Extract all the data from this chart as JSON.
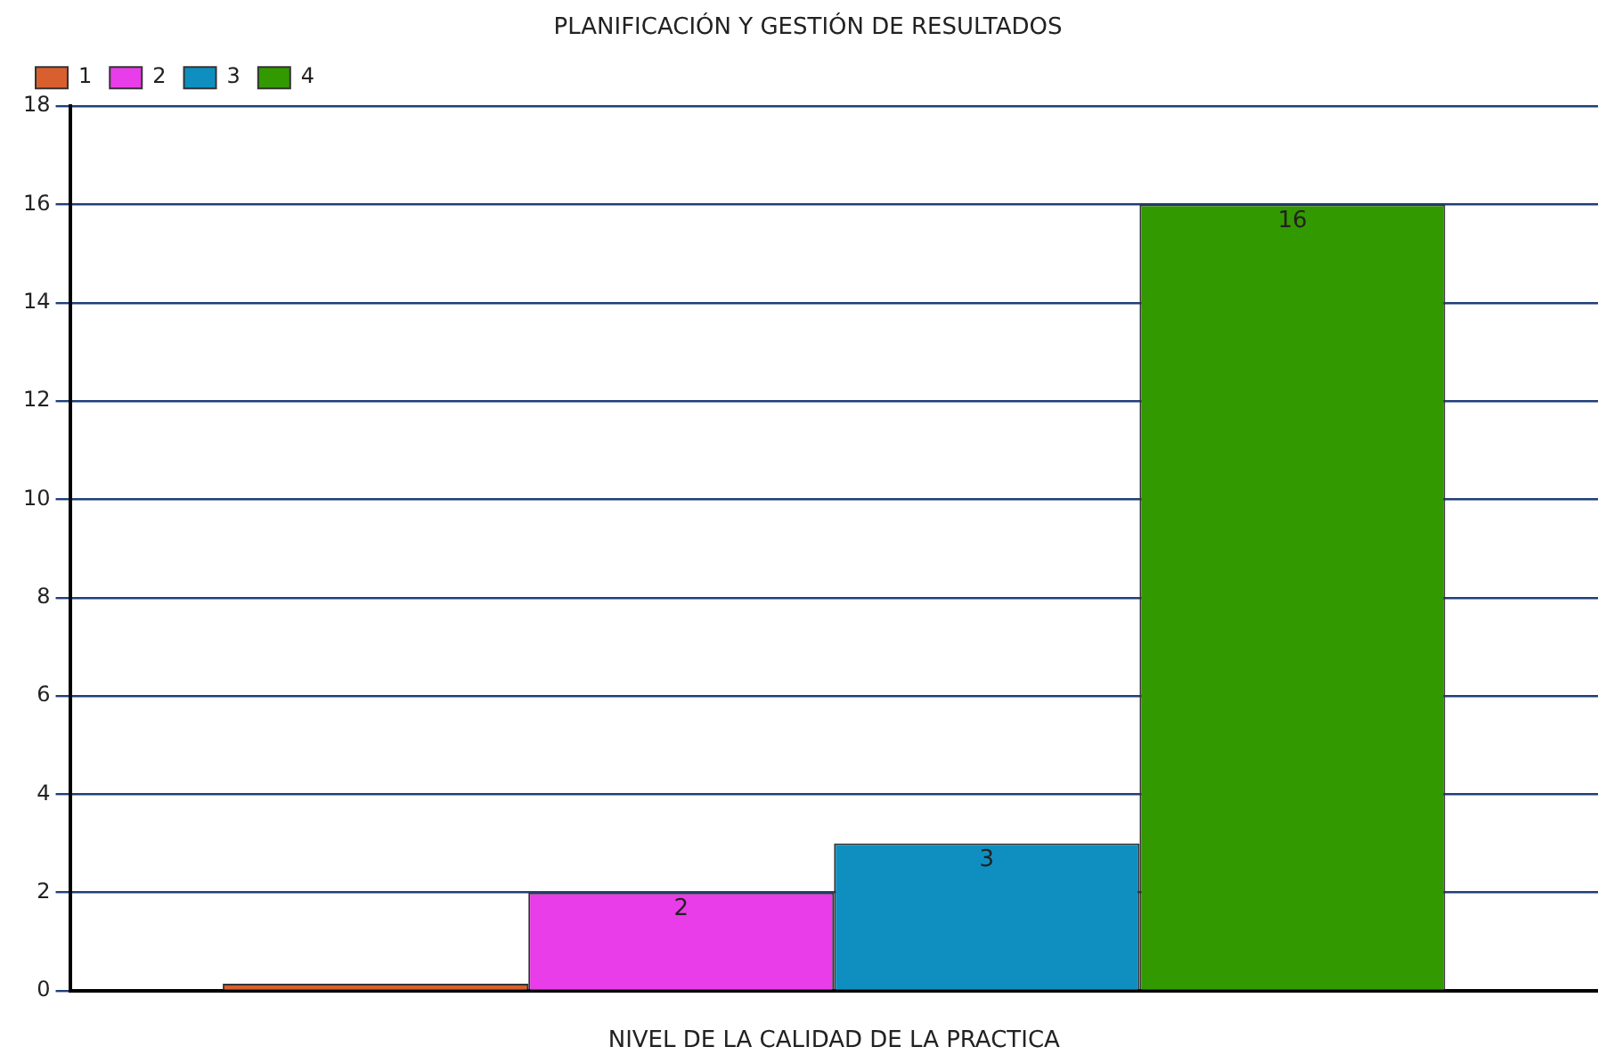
{
  "chart_data": {
    "type": "bar",
    "title": "PLANIFICACIÓN Y GESTIÓN DE RESULTADOS",
    "xlabel": "NIVEL DE LA CALIDAD DE LA PRACTICA",
    "categories": [
      null
    ],
    "series": [
      {
        "name": "1",
        "color": "#d9602e",
        "values": [
          0
        ],
        "value_labels": [
          null
        ]
      },
      {
        "name": "2",
        "color": "#e83de8",
        "values": [
          2
        ],
        "value_labels": [
          "2"
        ]
      },
      {
        "name": "3",
        "color": "#0f8fc0",
        "values": [
          3
        ],
        "value_labels": [
          "3"
        ]
      },
      {
        "name": "4",
        "color": "#339900",
        "values": [
          16
        ],
        "value_labels": [
          "16"
        ]
      }
    ],
    "ylim": [
      0,
      18
    ],
    "yticks": [
      0,
      2,
      4,
      6,
      8,
      10,
      12,
      14,
      16,
      18
    ],
    "grid": "y",
    "legend": "top left"
  }
}
